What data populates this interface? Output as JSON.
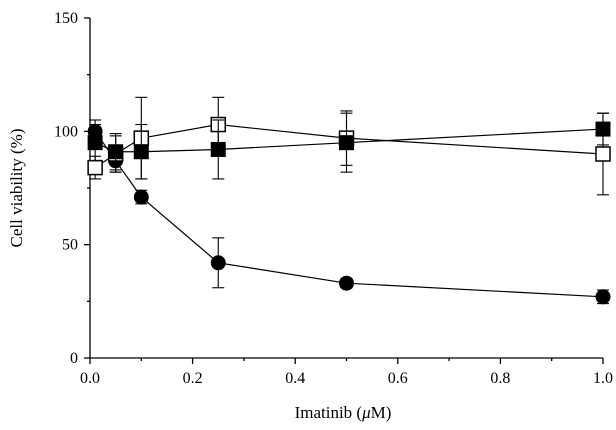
{
  "chart_data": {
    "type": "line",
    "title": "",
    "xlabel": "Imatinib (μM)",
    "ylabel": "Cell viability (%)",
    "xlim": [
      0,
      1.0
    ],
    "ylim": [
      0,
      150
    ],
    "x_ticks": [
      0.0,
      0.2,
      0.4,
      0.6,
      0.8,
      1.0
    ],
    "x_tick_labels": [
      "0.0",
      "0.2",
      "0.4",
      "0.6",
      "0.8",
      "1.0"
    ],
    "y_ticks": [
      0,
      50,
      100,
      150
    ],
    "y_tick_labels": [
      "0",
      "50",
      "100",
      "150"
    ],
    "grid": false,
    "legend": false,
    "series": [
      {
        "marker": "filled-circle",
        "color": "#000000",
        "x": [
          0.01,
          0.05,
          0.1,
          0.25,
          0.5,
          1.0
        ],
        "y": [
          100,
          87,
          71,
          42,
          33,
          27
        ],
        "err": [
          5,
          5,
          3,
          11,
          2,
          3
        ]
      },
      {
        "marker": "open-square",
        "color": "#000000",
        "x": [
          0.01,
          0.05,
          0.1,
          0.25,
          0.5,
          1.0
        ],
        "y": [
          84,
          90,
          97,
          103,
          97,
          90
        ],
        "err": [
          5,
          8,
          18,
          12,
          12,
          18
        ]
      },
      {
        "marker": "filled-square",
        "color": "#000000",
        "x": [
          0.01,
          0.05,
          0.1,
          0.25,
          0.5,
          1.0
        ],
        "y": [
          95,
          91,
          91,
          92,
          95,
          101
        ],
        "err": [
          8,
          8,
          12,
          13,
          13,
          7
        ]
      }
    ]
  }
}
